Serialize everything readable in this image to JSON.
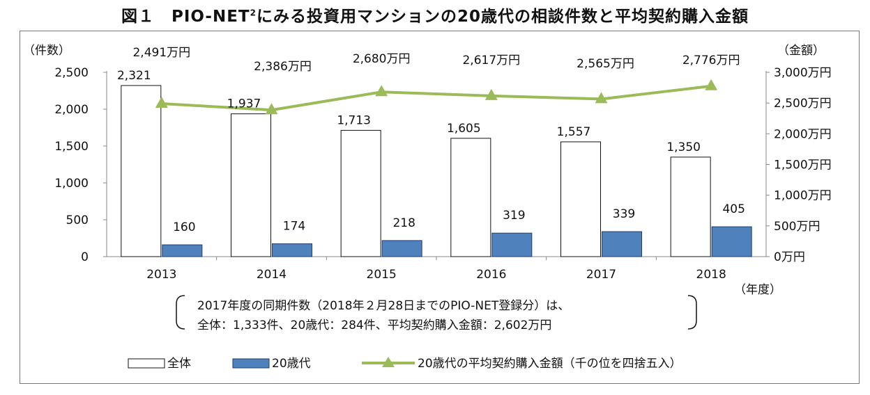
{
  "title_prefix": "図１　PIO-NET",
  "title_sup": "2",
  "title_suffix": "にみる投資用マンションの20歳代の相談件数と平均契約購入金額",
  "chart_data": {
    "type": "bar",
    "categories": [
      "2013",
      "2014",
      "2015",
      "2016",
      "2017",
      "2018"
    ],
    "series": [
      {
        "name": "全体",
        "values": [
          2321,
          1937,
          1713,
          1605,
          1557,
          1350
        ],
        "color": "#ffffff"
      },
      {
        "name": "20歳代",
        "values": [
          160,
          174,
          218,
          319,
          339,
          405
        ],
        "color": "#4f81bd"
      }
    ],
    "line_series": {
      "name": "20歳代の平均契約購入金額（千の位を四捨五入）",
      "values": [
        2491,
        2386,
        2680,
        2617,
        2565,
        2776
      ],
      "labels": [
        "2,491万円",
        "2,386万円",
        "2,680万円",
        "2,617万円",
        "2,565万円",
        "2,776万円"
      ],
      "color": "#9bbb59"
    },
    "bar_labels_total": [
      "2,321",
      "1,937",
      "1,713",
      "1,605",
      "1,557",
      "1,350"
    ],
    "bar_labels_20s": [
      "160",
      "174",
      "218",
      "319",
      "339",
      "405"
    ],
    "ylabel_left": "（件数）",
    "ylabel_right": "（金額）",
    "xlabel": "（年度）",
    "ylim_left": [
      0,
      2500
    ],
    "ylim_right": [
      0,
      3000
    ],
    "yticks_left": [
      "0",
      "500",
      "1,000",
      "1,500",
      "2,000",
      "2,500"
    ],
    "yticks_right": [
      "0万円",
      "500万円",
      "1,000万円",
      "1,500万円",
      "2,000万円",
      "2,500万円",
      "3,000万円"
    ],
    "grid": false,
    "legend_position": "bottom"
  },
  "note": {
    "line1": "2017年度の同期件数（2018年２月28日までのPIO-NET登録分）は、",
    "line2": "全体：1,333件、20歳代：284件、平均契約購入金額：2,602万円"
  },
  "legend": {
    "total": "全体",
    "twenties": "20歳代",
    "line": "20歳代の平均契約購入金額（千の位を四捨五入）"
  }
}
